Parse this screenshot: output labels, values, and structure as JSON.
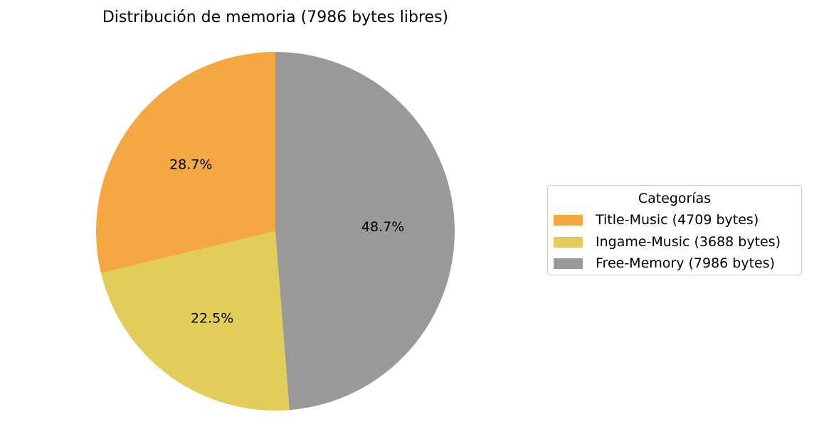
{
  "chart_data": {
    "type": "pie",
    "title": "Distribución de memoria (7986 bytes libres)",
    "legend_title": "Categorías",
    "legend_position": "right",
    "start_angle": 90,
    "direction": "counterclockwise",
    "slices": [
      {
        "label": "Title-Music (4709 bytes)",
        "value": 4709,
        "pct_label": "28.7%",
        "color": "#F4A742"
      },
      {
        "label": "Ingame-Music (3688 bytes)",
        "value": 3688,
        "pct_label": "22.5%",
        "color": "#E2CC5A"
      },
      {
        "label": "Free-Memory (7986 bytes)",
        "value": 7986,
        "pct_label": "48.7%",
        "color": "#999999"
      }
    ]
  }
}
